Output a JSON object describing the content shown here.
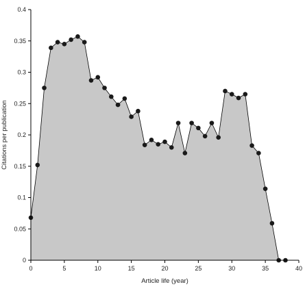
{
  "chart_data": {
    "type": "area",
    "title": "",
    "xlabel": "Article life (year)",
    "ylabel": "Citations per publication",
    "xlim": [
      0,
      40
    ],
    "ylim": [
      0,
      0.4
    ],
    "xticks": [
      0,
      5,
      10,
      15,
      20,
      25,
      30,
      35,
      40
    ],
    "yticks": [
      0,
      0.05,
      0.1,
      0.15,
      0.2,
      0.25,
      0.3,
      0.35,
      0.4
    ],
    "ytick_labels": [
      "0",
      "0.05",
      "0.1",
      "0.15",
      "0.2",
      "0.25",
      "0.3",
      "0.35",
      "0.4"
    ],
    "grid": false,
    "x": [
      0,
      1,
      2,
      3,
      4,
      5,
      6,
      7,
      8,
      9,
      10,
      11,
      12,
      13,
      14,
      15,
      16,
      17,
      18,
      19,
      20,
      21,
      22,
      23,
      24,
      25,
      26,
      27,
      28,
      29,
      30,
      31,
      32,
      33,
      34,
      35,
      36,
      37,
      38
    ],
    "y": [
      0.068,
      0.152,
      0.275,
      0.339,
      0.348,
      0.345,
      0.352,
      0.357,
      0.348,
      0.287,
      0.292,
      0.275,
      0.261,
      0.248,
      0.258,
      0.229,
      0.238,
      0.184,
      0.192,
      0.185,
      0.189,
      0.18,
      0.219,
      0.171,
      0.219,
      0.211,
      0.198,
      0.219,
      0.196,
      0.27,
      0.265,
      0.259,
      0.265,
      0.183,
      0.171,
      0.114,
      0.059,
      0.0,
      0.0
    ]
  }
}
